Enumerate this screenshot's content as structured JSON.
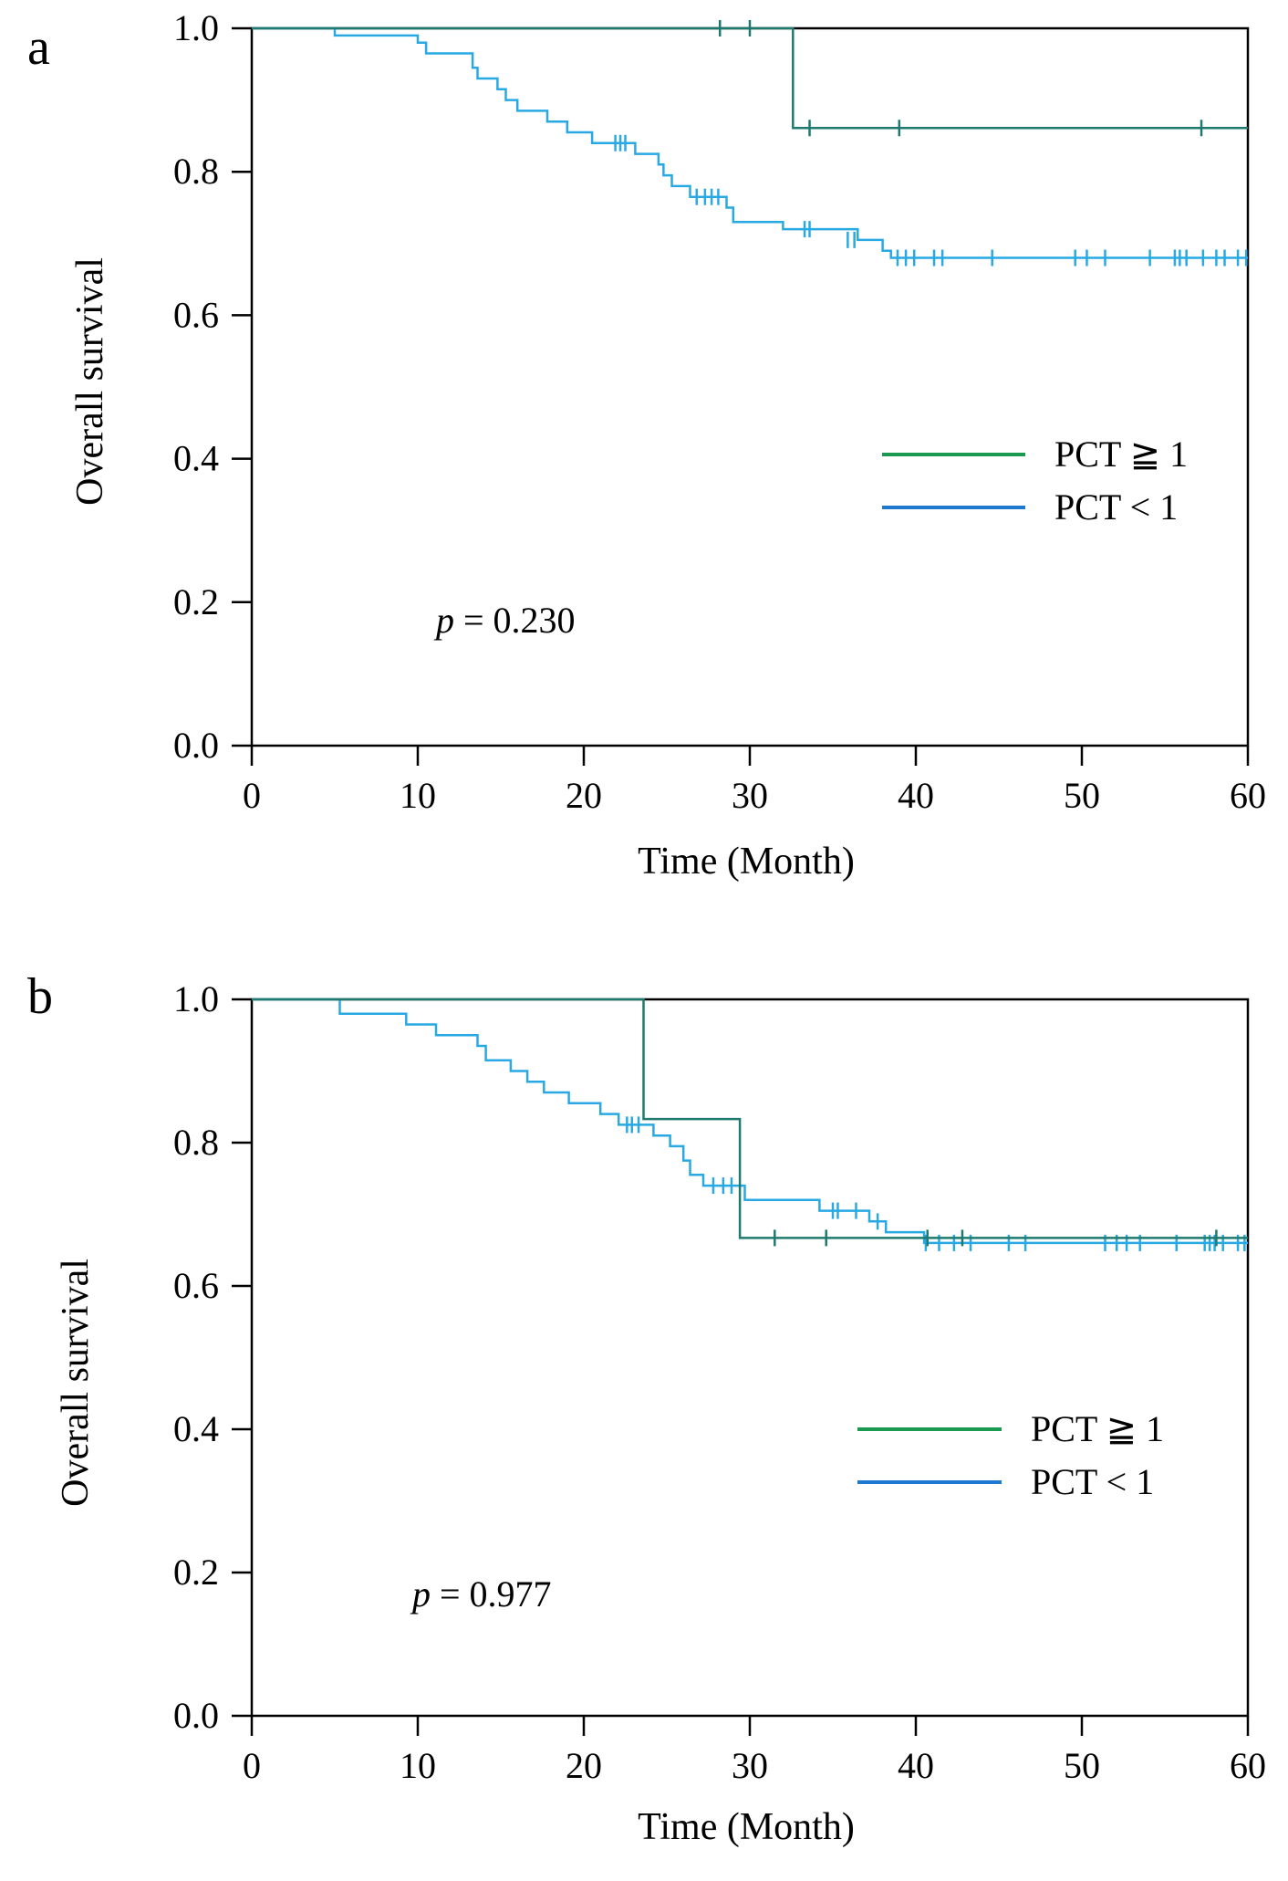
{
  "chart_data": [
    {
      "panel_label": "a",
      "type": "line",
      "subtype": "kaplan-meier",
      "xlabel": "Time (Month)",
      "ylabel": "Overall survival",
      "xlim": [
        0,
        60
      ],
      "ylim": [
        0,
        1
      ],
      "xticks": [
        "0",
        "10",
        "20",
        "30",
        "40",
        "50",
        "60"
      ],
      "yticks": [
        "0.0",
        "0.2",
        "0.4",
        "0.6",
        "0.8",
        "1.0"
      ],
      "legend_position": "center-right",
      "p_prefix": "p",
      "p_text": "= 0.230",
      "series": [
        {
          "name": "PCT ≧ 1",
          "color": "#1e7a6e",
          "legend_color": "#1a9a50",
          "steps": [
            [
              0,
              1.0
            ],
            [
              32.6,
              1.0
            ],
            [
              32.6,
              0.861
            ],
            [
              60,
              0.861
            ]
          ],
          "censors": [
            [
              28.2,
              1.0
            ],
            [
              30.0,
              1.0
            ],
            [
              33.6,
              0.861
            ],
            [
              39.0,
              0.861
            ],
            [
              57.2,
              0.861
            ]
          ]
        },
        {
          "name": "PCT < 1",
          "color": "#29a9e3",
          "legend_color": "#1e78d0",
          "steps": [
            [
              0,
              1.0
            ],
            [
              5.0,
              1.0
            ],
            [
              5.0,
              0.99
            ],
            [
              10.0,
              0.99
            ],
            [
              10.0,
              0.98
            ],
            [
              10.5,
              0.98
            ],
            [
              10.5,
              0.965
            ],
            [
              13.3,
              0.965
            ],
            [
              13.3,
              0.945
            ],
            [
              13.6,
              0.945
            ],
            [
              13.6,
              0.93
            ],
            [
              14.8,
              0.93
            ],
            [
              14.8,
              0.915
            ],
            [
              15.3,
              0.915
            ],
            [
              15.3,
              0.9
            ],
            [
              16.0,
              0.9
            ],
            [
              16.0,
              0.885
            ],
            [
              17.8,
              0.885
            ],
            [
              17.8,
              0.87
            ],
            [
              19.0,
              0.87
            ],
            [
              19.0,
              0.855
            ],
            [
              20.5,
              0.855
            ],
            [
              20.5,
              0.84
            ],
            [
              23.1,
              0.84
            ],
            [
              23.1,
              0.825
            ],
            [
              24.5,
              0.825
            ],
            [
              24.5,
              0.81
            ],
            [
              24.8,
              0.81
            ],
            [
              24.8,
              0.795
            ],
            [
              25.3,
              0.795
            ],
            [
              25.3,
              0.78
            ],
            [
              26.4,
              0.78
            ],
            [
              26.4,
              0.765
            ],
            [
              28.6,
              0.765
            ],
            [
              28.6,
              0.75
            ],
            [
              29.0,
              0.75
            ],
            [
              29.0,
              0.73
            ],
            [
              32.0,
              0.73
            ],
            [
              32.0,
              0.72
            ],
            [
              36.5,
              0.72
            ],
            [
              36.5,
              0.705
            ],
            [
              38.0,
              0.705
            ],
            [
              38.0,
              0.69
            ],
            [
              38.5,
              0.69
            ],
            [
              38.5,
              0.68
            ],
            [
              60,
              0.68
            ]
          ],
          "censors": [
            [
              21.9,
              0.84
            ],
            [
              22.2,
              0.84
            ],
            [
              22.5,
              0.84
            ],
            [
              26.8,
              0.765
            ],
            [
              27.3,
              0.765
            ],
            [
              27.7,
              0.765
            ],
            [
              28.1,
              0.765
            ],
            [
              33.3,
              0.72
            ],
            [
              33.6,
              0.72
            ],
            [
              35.9,
              0.705
            ],
            [
              36.3,
              0.705
            ],
            [
              38.9,
              0.68
            ],
            [
              39.4,
              0.68
            ],
            [
              39.9,
              0.68
            ],
            [
              41.1,
              0.68
            ],
            [
              41.6,
              0.68
            ],
            [
              44.6,
              0.68
            ],
            [
              49.6,
              0.68
            ],
            [
              50.3,
              0.68
            ],
            [
              51.4,
              0.68
            ],
            [
              54.1,
              0.68
            ],
            [
              55.6,
              0.68
            ],
            [
              55.9,
              0.68
            ],
            [
              56.3,
              0.68
            ],
            [
              57.3,
              0.68
            ],
            [
              58.1,
              0.68
            ],
            [
              58.6,
              0.68
            ],
            [
              59.4,
              0.68
            ],
            [
              59.9,
              0.68
            ]
          ]
        }
      ]
    },
    {
      "panel_label": "b",
      "type": "line",
      "subtype": "kaplan-meier",
      "xlabel": "Time (Month)",
      "ylabel": "Overall survival",
      "xlim": [
        0,
        60
      ],
      "ylim": [
        0,
        1
      ],
      "xticks": [
        "0",
        "10",
        "20",
        "30",
        "40",
        "50",
        "60"
      ],
      "yticks": [
        "0.0",
        "0.2",
        "0.4",
        "0.6",
        "0.8",
        "1.0"
      ],
      "legend_position": "center-right",
      "p_prefix": "p",
      "p_text": "= 0.977",
      "series": [
        {
          "name": "PCT ≧ 1",
          "color": "#1e7a6e",
          "legend_color": "#1a9a50",
          "steps": [
            [
              0,
              1.0
            ],
            [
              23.6,
              1.0
            ],
            [
              23.6,
              0.833
            ],
            [
              29.4,
              0.833
            ],
            [
              29.4,
              0.667
            ],
            [
              60,
              0.667
            ]
          ],
          "censors": [
            [
              31.5,
              0.667
            ],
            [
              34.6,
              0.667
            ],
            [
              40.7,
              0.667
            ],
            [
              42.8,
              0.667
            ],
            [
              58.1,
              0.667
            ]
          ]
        },
        {
          "name": "PCT < 1",
          "color": "#29a9e3",
          "legend_color": "#1e78d0",
          "steps": [
            [
              0,
              1.0
            ],
            [
              5.3,
              1.0
            ],
            [
              5.3,
              0.98
            ],
            [
              9.3,
              0.98
            ],
            [
              9.3,
              0.965
            ],
            [
              11.1,
              0.965
            ],
            [
              11.1,
              0.95
            ],
            [
              13.6,
              0.95
            ],
            [
              13.6,
              0.935
            ],
            [
              14.1,
              0.935
            ],
            [
              14.1,
              0.915
            ],
            [
              15.6,
              0.915
            ],
            [
              15.6,
              0.9
            ],
            [
              16.6,
              0.9
            ],
            [
              16.6,
              0.885
            ],
            [
              17.6,
              0.885
            ],
            [
              17.6,
              0.87
            ],
            [
              19.1,
              0.87
            ],
            [
              19.1,
              0.855
            ],
            [
              21.0,
              0.855
            ],
            [
              21.0,
              0.84
            ],
            [
              22.1,
              0.84
            ],
            [
              22.1,
              0.825
            ],
            [
              24.2,
              0.825
            ],
            [
              24.2,
              0.81
            ],
            [
              25.2,
              0.81
            ],
            [
              25.2,
              0.795
            ],
            [
              26.0,
              0.795
            ],
            [
              26.0,
              0.775
            ],
            [
              26.4,
              0.775
            ],
            [
              26.4,
              0.755
            ],
            [
              27.2,
              0.755
            ],
            [
              27.2,
              0.74
            ],
            [
              29.7,
              0.74
            ],
            [
              29.7,
              0.72
            ],
            [
              34.2,
              0.72
            ],
            [
              34.2,
              0.705
            ],
            [
              37.2,
              0.705
            ],
            [
              37.2,
              0.69
            ],
            [
              38.2,
              0.69
            ],
            [
              38.2,
              0.675
            ],
            [
              40.5,
              0.675
            ],
            [
              40.5,
              0.66
            ],
            [
              60,
              0.66
            ]
          ],
          "censors": [
            [
              22.6,
              0.825
            ],
            [
              22.9,
              0.825
            ],
            [
              23.3,
              0.825
            ],
            [
              27.8,
              0.74
            ],
            [
              28.4,
              0.74
            ],
            [
              28.9,
              0.74
            ],
            [
              35.0,
              0.705
            ],
            [
              35.3,
              0.705
            ],
            [
              36.4,
              0.705
            ],
            [
              37.7,
              0.69
            ],
            [
              40.6,
              0.66
            ],
            [
              41.4,
              0.66
            ],
            [
              42.3,
              0.66
            ],
            [
              43.3,
              0.66
            ],
            [
              45.6,
              0.66
            ],
            [
              46.6,
              0.66
            ],
            [
              51.4,
              0.66
            ],
            [
              52.1,
              0.66
            ],
            [
              52.7,
              0.66
            ],
            [
              53.5,
              0.66
            ],
            [
              55.7,
              0.66
            ],
            [
              57.4,
              0.66
            ],
            [
              57.7,
              0.66
            ],
            [
              58.0,
              0.66
            ],
            [
              58.5,
              0.66
            ],
            [
              59.4,
              0.66
            ],
            [
              59.8,
              0.66
            ]
          ]
        }
      ]
    }
  ]
}
